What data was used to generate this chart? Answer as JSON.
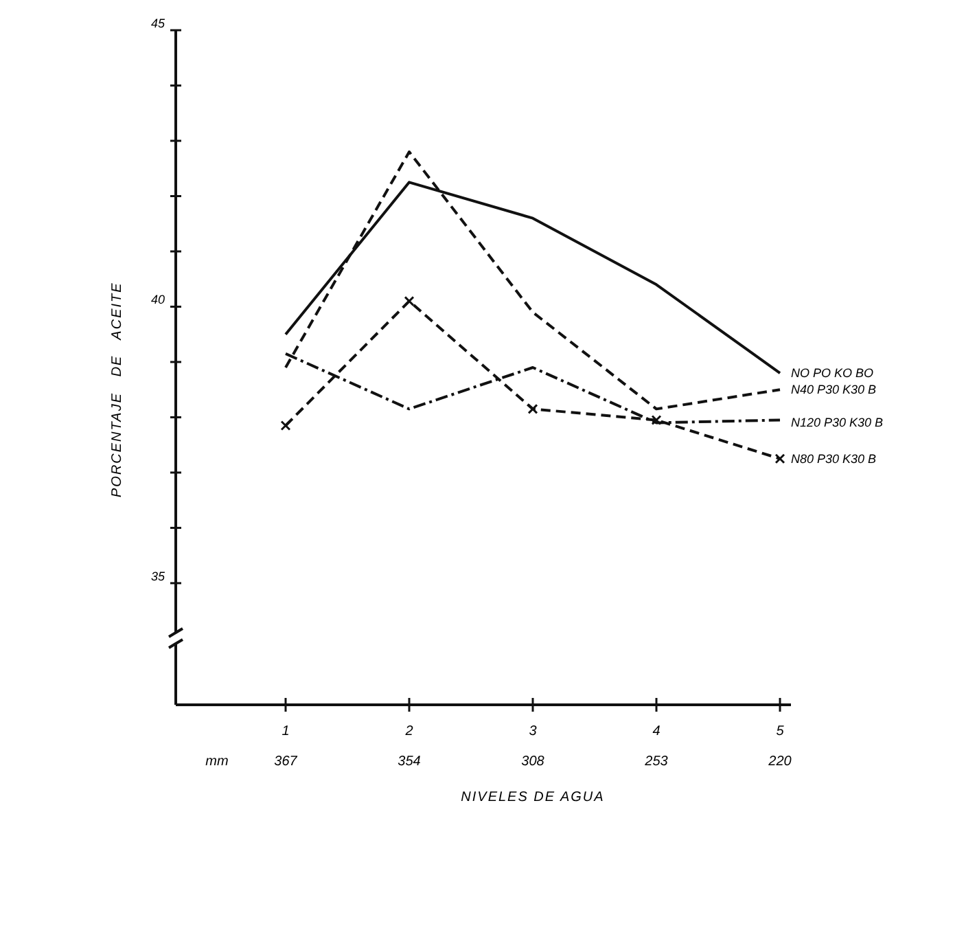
{
  "chart_data": {
    "type": "line",
    "xlabel": "NIVELES DE AGUA",
    "ylabel": "PORCENTAJE   DE   ACEITE",
    "categories": [
      "1",
      "2",
      "3",
      "4",
      "5"
    ],
    "ylim": [
      32.8,
      45
    ],
    "yticks": [
      {
        "value": 35,
        "label": "35"
      },
      {
        "value": 36,
        "label": null
      },
      {
        "value": 37,
        "label": null
      },
      {
        "value": 38,
        "label": null
      },
      {
        "value": 39,
        "label": null
      },
      {
        "value": 40,
        "label": "40"
      },
      {
        "value": 41,
        "label": null
      },
      {
        "value": 42,
        "label": null
      },
      {
        "value": 43,
        "label": null
      },
      {
        "value": 44,
        "label": null
      },
      {
        "value": 45,
        "label": "45"
      }
    ],
    "series": [
      {
        "name": "NO  PO  KO  BO",
        "color": "#111111",
        "line_style": "solid",
        "marker": "none",
        "values": [
          39.5,
          42.25,
          41.6,
          40.4,
          38.8
        ]
      },
      {
        "name": "N40 P30 K30 B",
        "color": "#111111",
        "line_style": "dashed",
        "marker": "none",
        "values": [
          38.9,
          42.8,
          39.9,
          38.15,
          38.5
        ]
      },
      {
        "name": "N120 P30 K30 B",
        "color": "#111111",
        "line_style": "dotted",
        "marker": "none",
        "values": [
          39.15,
          38.15,
          38.9,
          37.9,
          37.95
        ]
      },
      {
        "name": "N80 P30 K30 B",
        "color": "#111111",
        "line_style": "dashed",
        "marker": "cross",
        "values": [
          37.85,
          40.1,
          38.15,
          37.95,
          37.25
        ]
      }
    ],
    "annotations": [
      "mm",
      "367",
      "354",
      "308",
      "253",
      "220"
    ],
    "grid": false
  }
}
